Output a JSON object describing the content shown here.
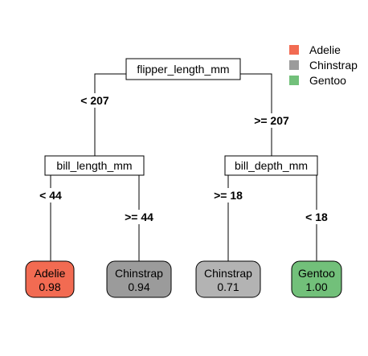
{
  "legend": [
    {
      "label": "Adelie",
      "color": "#f26b52"
    },
    {
      "label": "Chinstrap",
      "color": "#9b9b9b"
    },
    {
      "label": "Gentoo",
      "color": "#72c07a"
    }
  ],
  "tree": {
    "root": {
      "label": "flipper_length_mm"
    },
    "edges": {
      "root_left": "< 207",
      "root_right": ">= 207",
      "l_left": "< 44",
      "l_right": ">= 44",
      "r_left": ">= 18",
      "r_right": "< 18"
    },
    "left": {
      "label": "bill_length_mm"
    },
    "right": {
      "label": "bill_depth_mm"
    },
    "leaves": [
      {
        "class": "Adelie",
        "prob": "0.98",
        "color": "#f26b52"
      },
      {
        "class": "Chinstrap",
        "prob": "0.94",
        "color": "#9b9b9b"
      },
      {
        "class": "Chinstrap",
        "prob": "0.71",
        "color": "#b3b3b3"
      },
      {
        "class": "Gentoo",
        "prob": "1.00",
        "color": "#72c07a"
      }
    ]
  }
}
